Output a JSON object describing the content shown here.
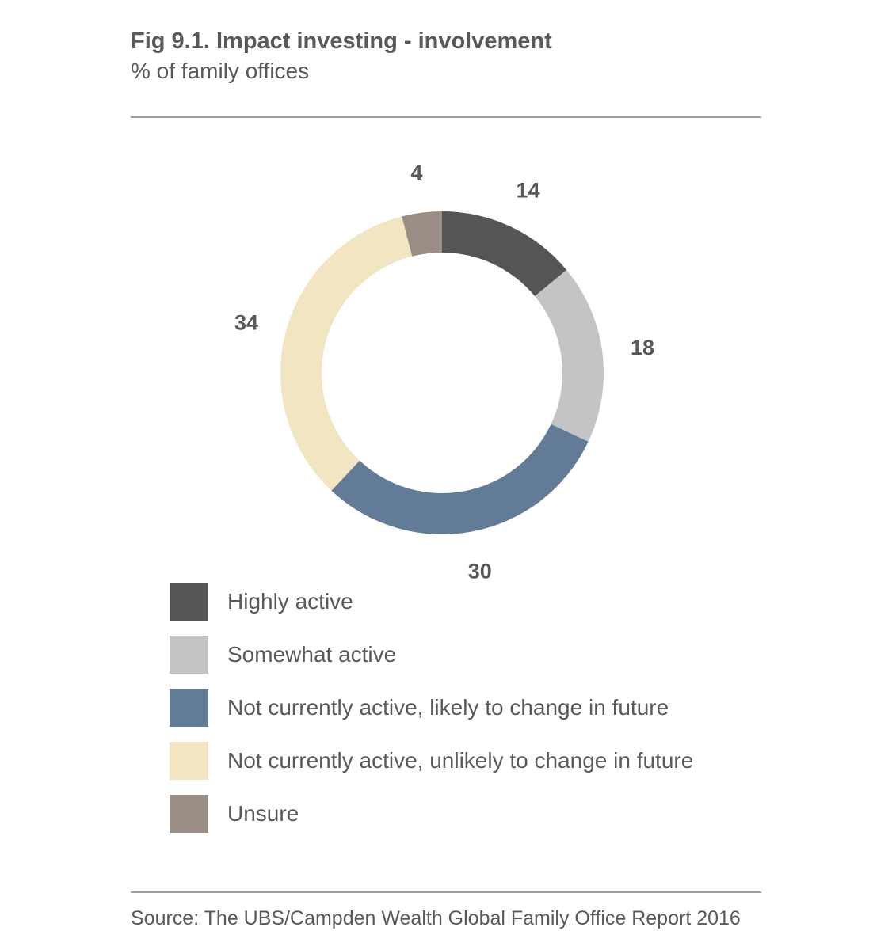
{
  "title": "Fig 9.1. Impact investing - involvement",
  "subtitle": "% of family offices",
  "source": "Source: The UBS/Campden Wealth Global Family Office Report 2016",
  "chart_data": {
    "type": "pie",
    "variant": "donut",
    "title": "Fig 9.1. Impact investing - involvement",
    "subtitle": "% of family offices",
    "unit": "%",
    "categories": [
      "Highly active",
      "Somewhat active",
      "Not currently active, likely to change in future",
      "Not currently active, unlikely to change in future",
      "Unsure"
    ],
    "values": [
      14,
      18,
      30,
      34,
      4
    ],
    "colors": [
      "#555555",
      "#c4c4c4",
      "#627b97",
      "#f1e6c1",
      "#9a8d86"
    ],
    "legend_position": "bottom",
    "start_angle": "12 o'clock",
    "direction": "clockwise"
  }
}
